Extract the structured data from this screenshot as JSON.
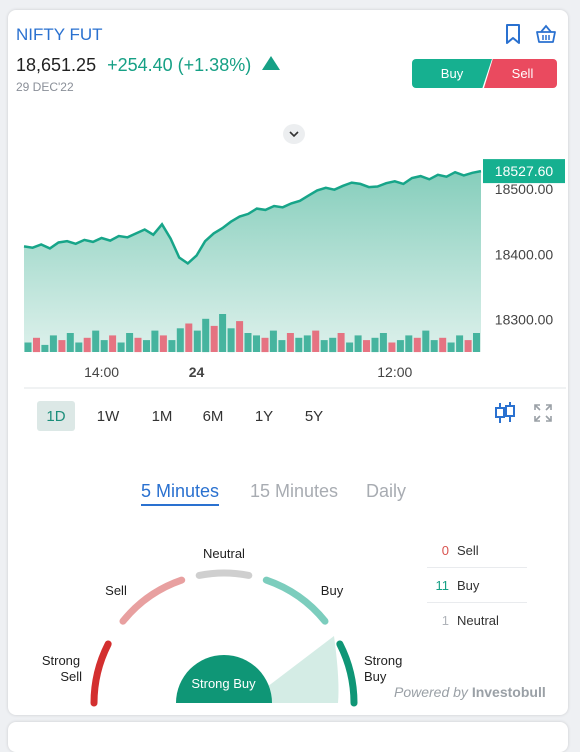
{
  "instrument": {
    "name": "NIFTY FUT",
    "price": "18,651.25",
    "change": "+254.40 (+1.38%)",
    "date": "29 DEC'22"
  },
  "actions": {
    "buy_label": "Buy",
    "sell_label": "Sell"
  },
  "icons": {
    "bookmark": "bookmark-icon",
    "basket": "basket-icon",
    "collapse": "chevron-down-icon",
    "candle": "candlestick-icon",
    "expand": "expand-icon",
    "trend": "up-triangle-icon"
  },
  "colors": {
    "brand_blue": "#2a71d0",
    "up": "#16a085",
    "buy": "#16b090",
    "sell": "#ea4a5f",
    "line": "#17a589"
  },
  "chart_data": {
    "type": "area",
    "series": [
      {
        "values": [
          18412,
          18410,
          18415,
          18409,
          18418,
          18420,
          18416,
          18422,
          18419,
          18425,
          18421,
          18428,
          18426,
          18432,
          18438,
          18430,
          18446,
          18424,
          18395,
          18386,
          18398,
          18420,
          18432,
          18440,
          18450,
          18458,
          18462,
          18470,
          18468,
          18474,
          18472,
          18478,
          18482,
          18490,
          18498,
          18502,
          18499,
          18505,
          18510,
          18508,
          18503,
          18504,
          18509,
          18512,
          18508,
          18517,
          18520,
          18515,
          18522,
          18519,
          18526,
          18521,
          18525,
          18527.6
        ]
      }
    ],
    "volume": [
      4,
      6,
      3,
      7,
      5,
      8,
      4,
      6,
      9,
      5,
      7,
      4,
      8,
      6,
      5,
      9,
      7,
      5,
      10,
      12,
      9,
      14,
      11,
      16,
      10,
      13,
      8,
      7,
      6,
      9,
      5,
      8,
      6,
      7,
      9,
      5,
      6,
      8,
      4,
      7,
      5,
      6,
      8,
      4,
      5,
      7,
      6,
      9,
      5,
      6,
      4,
      7,
      5,
      8
    ],
    "x_ticks": [
      {
        "label": "14:00",
        "index": 9,
        "bold": false
      },
      {
        "label": "24",
        "index": 20,
        "bold": true
      },
      {
        "label": "12:00",
        "index": 43,
        "bold": false
      }
    ],
    "y_ticks": [
      "18300.00",
      "18400.00",
      "18500.00"
    ],
    "y_tick_values": [
      18300,
      18400,
      18500
    ],
    "last_price_label": "18527.60",
    "ylim": [
      18250,
      18560
    ]
  },
  "timeframes": [
    {
      "label": "1D",
      "active": true
    },
    {
      "label": "1W",
      "active": false
    },
    {
      "label": "1M",
      "active": false
    },
    {
      "label": "6M",
      "active": false
    },
    {
      "label": "1Y",
      "active": false
    },
    {
      "label": "5Y",
      "active": false
    }
  ],
  "tabs": [
    {
      "label": "5 Minutes",
      "active": true
    },
    {
      "label": "15 Minutes",
      "active": false
    },
    {
      "label": "Daily",
      "active": false
    }
  ],
  "technicals": [
    {
      "count": "0",
      "label": "Sell",
      "color": "#d9534f"
    },
    {
      "count": "11",
      "label": "Buy",
      "color": "#16a085"
    },
    {
      "count": "1",
      "label": "Neutral",
      "color": "#b0b4ba"
    }
  ],
  "gauge": {
    "labels": {
      "strong_sell": [
        "Strong",
        "Sell"
      ],
      "sell": "Sell",
      "neutral": "Neutral",
      "buy": "Buy",
      "strong_buy": [
        "Strong",
        "Buy"
      ]
    },
    "result": "Strong Buy",
    "segment_colors": [
      "#d32f2f",
      "#e8a0a0",
      "#cfcfcf",
      "#7ccdbd",
      "#0f9676"
    ]
  },
  "footer": {
    "powered_prefix": "Powered by",
    "brand": "Investobull"
  }
}
